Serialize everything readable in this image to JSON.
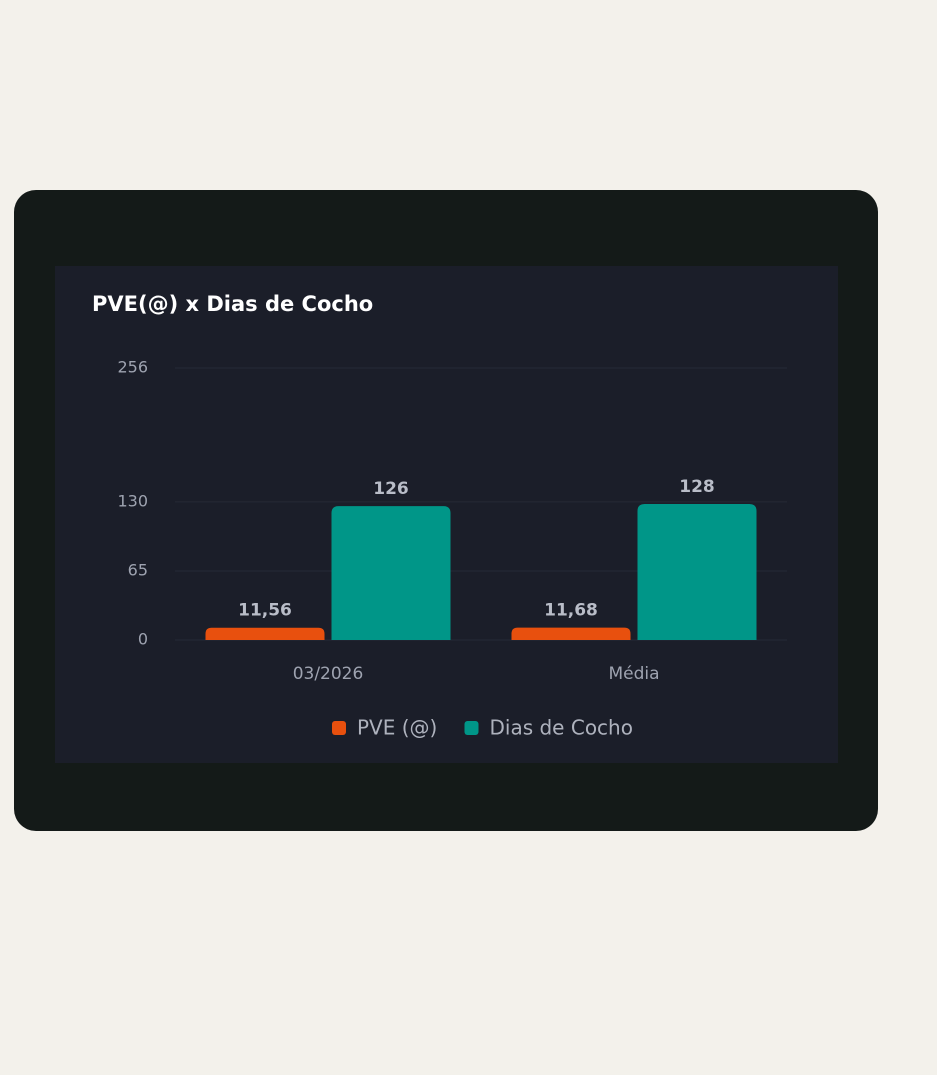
{
  "chart_data": {
    "type": "bar",
    "title": "PVE(@) x Dias de Cocho",
    "categories": [
      "03/2026",
      "Média"
    ],
    "series": [
      {
        "name": "PVE (@)",
        "color": "#e8500e",
        "values": [
          11.56,
          11.68
        ],
        "value_labels": [
          "11,56",
          "11,68"
        ]
      },
      {
        "name": "Dias de Cocho",
        "color": "#009688",
        "values": [
          126,
          128
        ],
        "value_labels": [
          "126",
          "128"
        ]
      }
    ],
    "ylim": [
      0,
      256
    ],
    "yticks": [
      0,
      65,
      130,
      256
    ],
    "grid": true,
    "legend": "bottom"
  }
}
